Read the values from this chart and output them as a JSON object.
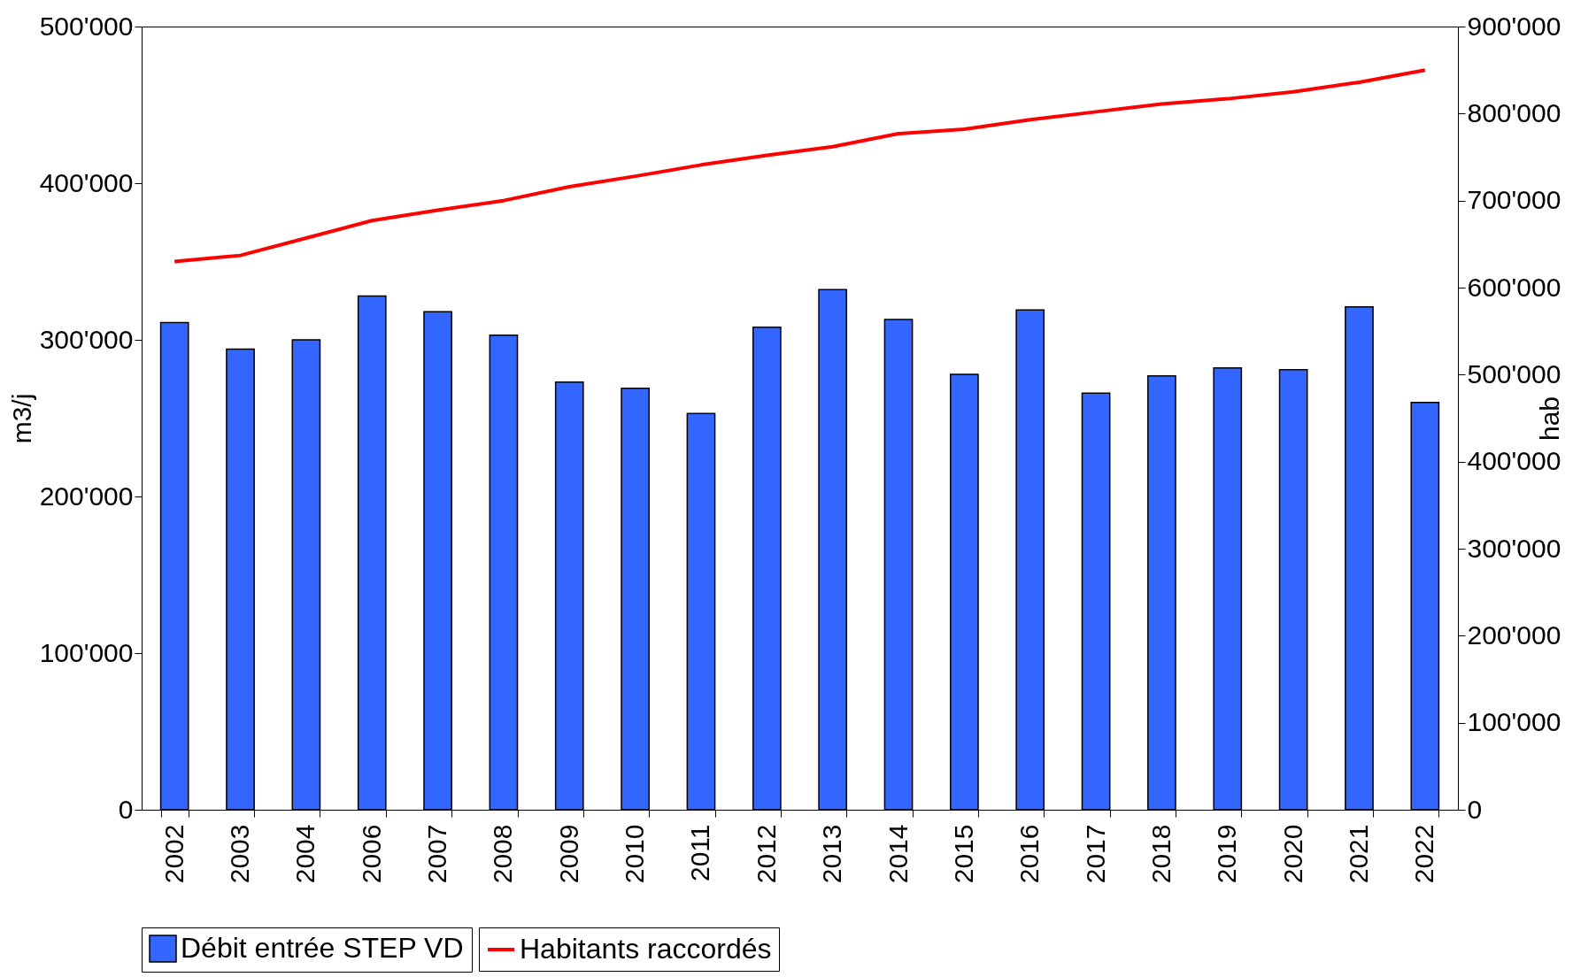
{
  "chart_data": {
    "type": "bar",
    "categories": [
      "2002",
      "2003",
      "2004",
      "2006",
      "2007",
      "2008",
      "2009",
      "2010",
      "2011",
      "2012",
      "2013",
      "2014",
      "2015",
      "2016",
      "2017",
      "2018",
      "2019",
      "2020",
      "2021",
      "2022"
    ],
    "ylabel": "m3/j",
    "y2label": "hab",
    "ylim": [
      0,
      500000
    ],
    "yticks": [
      {
        "value": 0,
        "label": "0"
      },
      {
        "value": 100000,
        "label": "100'000"
      },
      {
        "value": 200000,
        "label": "200'000"
      },
      {
        "value": 300000,
        "label": "300'000"
      },
      {
        "value": 400000,
        "label": "400'000"
      },
      {
        "value": 500000,
        "label": "500'000"
      }
    ],
    "y2lim": [
      0,
      900000
    ],
    "y2ticks": [
      {
        "value": 0,
        "label": "0"
      },
      {
        "value": 100000,
        "label": "100'000"
      },
      {
        "value": 200000,
        "label": "200'000"
      },
      {
        "value": 300000,
        "label": "300'000"
      },
      {
        "value": 400000,
        "label": "400'000"
      },
      {
        "value": 500000,
        "label": "500'000"
      },
      {
        "value": 600000,
        "label": "600'000"
      },
      {
        "value": 700000,
        "label": "700'000"
      },
      {
        "value": 800000,
        "label": "800'000"
      },
      {
        "value": 900000,
        "label": "900'000"
      }
    ],
    "grid": false,
    "legend": "bottom",
    "series": [
      {
        "name": "Débit entrée STEP VD",
        "color": "#3366ff",
        "values": [
          311000,
          294000,
          300000,
          328000,
          318000,
          303000,
          273000,
          269000,
          253000,
          308000,
          332000,
          313000,
          278000,
          319000,
          266000,
          277000,
          282000,
          281000,
          321000,
          260000
        ]
      },
      {
        "name": "Habitants raccordés",
        "type": "line",
        "axis": "y2",
        "color": "#ff0000",
        "values": [
          630000,
          637000,
          657000,
          677000,
          689000,
          700000,
          716000,
          728000,
          741000,
          752000,
          762000,
          777000,
          782000,
          793000,
          802000,
          811000,
          817000,
          825000,
          836000,
          850000
        ]
      }
    ]
  }
}
